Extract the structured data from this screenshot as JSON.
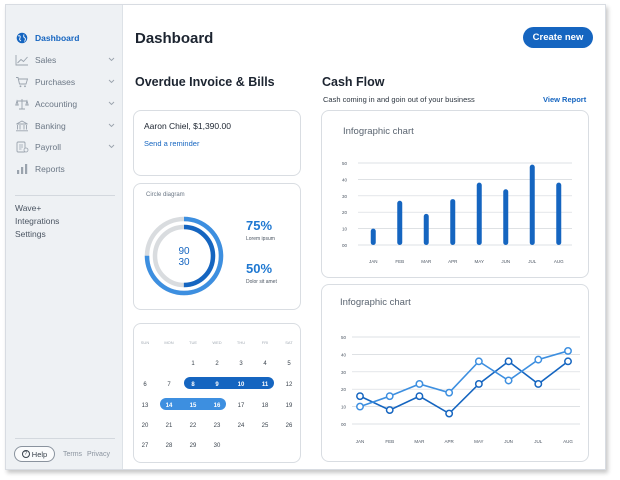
{
  "sidebar": {
    "items": [
      {
        "label": "Dashboard",
        "icon": "globe-icon",
        "active": true,
        "chevron": false
      },
      {
        "label": "Sales",
        "icon": "trend-chart-icon",
        "active": false,
        "chevron": true
      },
      {
        "label": "Purchases",
        "icon": "cart-icon",
        "active": false,
        "chevron": true
      },
      {
        "label": "Accounting",
        "icon": "scale-icon",
        "active": false,
        "chevron": true
      },
      {
        "label": "Banking",
        "icon": "bank-icon",
        "active": false,
        "chevron": true
      },
      {
        "label": "Payroll",
        "icon": "payroll-icon",
        "active": false,
        "chevron": true
      },
      {
        "label": "Reports",
        "icon": "bar-chart-icon",
        "active": false,
        "chevron": false
      }
    ],
    "links": [
      "Wave+",
      "Integrations",
      "Settings"
    ],
    "help_label": "Help",
    "help_icon": "question-icon",
    "footer_links": [
      "Terms",
      "Privacy"
    ]
  },
  "header": {
    "title": "Dashboard",
    "create_label": "Create new"
  },
  "overdue": {
    "title": "Overdue Invoice & Bills",
    "invoice_name": "Aaron Chiel, $1,390.00",
    "reminder_link": "Send a reminder"
  },
  "circle_card": {
    "label": "Circle diagram",
    "inner_values": [
      "90",
      "30"
    ],
    "stats": [
      {
        "pct": "75%",
        "desc": "Lorem ipsum",
        "value": 0.75
      },
      {
        "pct": "50%",
        "desc": "Dolor sit amet",
        "value": 0.5
      }
    ]
  },
  "calendar": {
    "weekdays": [
      "SUN",
      "MON",
      "TUE",
      "WED",
      "THU",
      "FRI",
      "SAT"
    ],
    "weeks": [
      [
        "",
        "",
        "1",
        "2",
        "3",
        "4",
        "5"
      ],
      [
        "6",
        "7",
        "8",
        "9",
        "10",
        "11",
        "12"
      ],
      [
        "13",
        "14",
        "15",
        "16",
        "17",
        "18",
        "19"
      ],
      [
        "20",
        "21",
        "22",
        "23",
        "24",
        "25",
        "26"
      ],
      [
        "27",
        "28",
        "29",
        "30",
        "",
        "",
        ""
      ]
    ],
    "selected_dark": [
      "8",
      "9",
      "10",
      "11"
    ],
    "selected_light": [
      "14",
      "15",
      "16"
    ]
  },
  "cashflow": {
    "title": "Cash Flow",
    "subtitle": "Cash coming in and goin out of your business",
    "view_report": "View Report"
  },
  "colors": {
    "accent": "#1565c0",
    "accent_light": "#3d8fe0",
    "track": "#d9dcdf"
  },
  "chart_data": [
    {
      "type": "bar",
      "title": "Infographic chart",
      "categories": [
        "JAN",
        "FEB",
        "MAR",
        "APR",
        "MAY",
        "JUN",
        "JUL",
        "AUG"
      ],
      "values": [
        10,
        27,
        19,
        28,
        38,
        34,
        49,
        38
      ],
      "ylim": [
        0,
        50
      ],
      "yticks": [
        "00",
        "10",
        "20",
        "30",
        "40",
        "50"
      ],
      "grid": true
    },
    {
      "type": "line",
      "title": "Infographic chart",
      "categories": [
        "JAN",
        "FEB",
        "MAR",
        "APR",
        "MAY",
        "JUN",
        "JUL",
        "AUG"
      ],
      "ylim": [
        0,
        50
      ],
      "yticks": [
        "00",
        "10",
        "20",
        "30",
        "40",
        "50"
      ],
      "grid": true,
      "series": [
        {
          "values": [
            16,
            8,
            16,
            6,
            23,
            36,
            23,
            36
          ],
          "color": "#1565c0"
        },
        {
          "values": [
            10,
            16,
            23,
            18,
            36,
            25,
            37,
            42
          ],
          "color": "#3d8fe0"
        }
      ]
    }
  ]
}
